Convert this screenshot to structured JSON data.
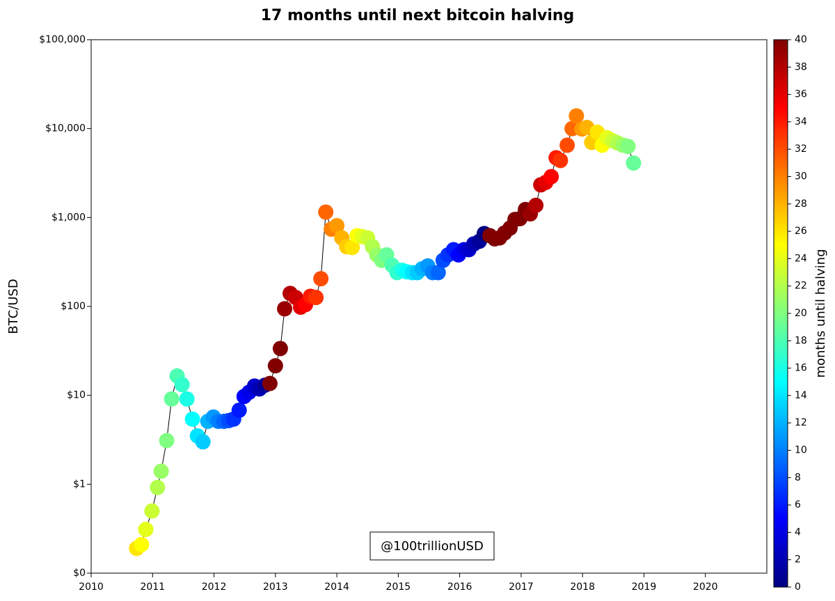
{
  "chart_data": {
    "type": "scatter",
    "title": "17 months until next bitcoin halving",
    "y_label": "BTC/USD",
    "annotation": "@100trillionUSD",
    "log_y": true,
    "xlim": [
      2010,
      2021
    ],
    "xticks": [
      2010,
      2011,
      2012,
      2013,
      2014,
      2015,
      2016,
      2017,
      2018,
      2019,
      2020
    ],
    "ylim": [
      0.1,
      100000
    ],
    "yticks": [
      {
        "value": 0.1,
        "label": "$0"
      },
      {
        "value": 1,
        "label": "$1"
      },
      {
        "value": 10,
        "label": "$10"
      },
      {
        "value": 100,
        "label": "$100"
      },
      {
        "value": 1000,
        "label": "$1,000"
      },
      {
        "value": 10000,
        "label": "$10,000"
      },
      {
        "value": 100000,
        "label": "$100,000"
      }
    ],
    "line_color": "#000000",
    "colorbar": {
      "label": "months until halving",
      "lim": [
        0,
        40
      ],
      "ticks": [
        0,
        2,
        4,
        6,
        8,
        10,
        12,
        14,
        16,
        18,
        20,
        22,
        24,
        26,
        28,
        30,
        32,
        34,
        36,
        38,
        40
      ]
    },
    "x": [
      2010.74,
      2010.82,
      2010.89,
      2010.99,
      2011.08,
      2011.14,
      2011.23,
      2011.31,
      2011.4,
      2011.48,
      2011.56,
      2011.65,
      2011.73,
      2011.82,
      2011.9,
      2011.99,
      2012.07,
      2012.16,
      2012.24,
      2012.32,
      2012.41,
      2012.49,
      2012.57,
      2012.66,
      2012.74,
      2012.83,
      2012.91,
      2013.0,
      2013.08,
      2013.15,
      2013.24,
      2013.33,
      2013.41,
      2013.49,
      2013.57,
      2013.66,
      2013.74,
      2013.82,
      2013.91,
      2014.0,
      2014.08,
      2014.16,
      2014.25,
      2014.33,
      2014.41,
      2014.5,
      2014.58,
      2014.65,
      2014.73,
      2014.81,
      2014.9,
      2014.98,
      2015.06,
      2015.14,
      2015.23,
      2015.31,
      2015.39,
      2015.48,
      2015.56,
      2015.65,
      2015.73,
      2015.81,
      2015.9,
      2015.98,
      2016.07,
      2016.15,
      2016.23,
      2016.32,
      2016.4,
      2016.49,
      2016.57,
      2016.65,
      2016.73,
      2016.82,
      2016.9,
      2016.98,
      2017.07,
      2017.15,
      2017.24,
      2017.32,
      2017.4,
      2017.49,
      2017.57,
      2017.64,
      2017.75,
      2017.83,
      2017.9,
      2017.99,
      2018.07,
      2018.15,
      2018.24,
      2018.32,
      2018.4,
      2018.49,
      2018.57,
      2018.66,
      2018.74,
      2018.83
    ],
    "y": [
      0.19,
      0.21,
      0.31,
      0.5,
      0.92,
      1.4,
      3.1,
      9.1,
      16.5,
      13.2,
      9.1,
      5.4,
      3.5,
      3.0,
      5.1,
      5.7,
      5.1,
      5.1,
      5.2,
      5.4,
      6.8,
      9.7,
      10.8,
      12.7,
      11.8,
      13.0,
      13.6,
      21.5,
      33.6,
      94,
      140,
      126,
      98,
      105,
      130,
      126,
      205,
      1150,
      740,
      810,
      590,
      470,
      460,
      625,
      610,
      590,
      470,
      380,
      330,
      380,
      290,
      240,
      255,
      245,
      240,
      240,
      265,
      285,
      240,
      240,
      330,
      380,
      435,
      380,
      435,
      435,
      505,
      540,
      660,
      625,
      575,
      590,
      670,
      760,
      950,
      970,
      1230,
      1100,
      1370,
      2330,
      2480,
      2880,
      4700,
      4380,
      6500,
      10000,
      13900,
      9900,
      10300,
      7000,
      9100,
      6500,
      7900,
      7300,
      6900,
      6500,
      6300,
      4100
    ],
    "color_values": [
      26,
      25,
      24,
      23,
      22,
      21,
      20,
      19,
      18,
      17,
      16,
      15,
      14,
      13,
      12,
      11,
      10,
      9,
      8,
      7,
      6,
      5,
      4,
      3,
      2,
      1,
      42,
      41,
      40,
      39,
      38,
      37,
      36,
      35,
      34,
      33,
      32,
      31,
      30,
      29,
      28,
      27,
      26,
      25,
      24,
      23,
      22,
      21,
      20,
      19,
      18,
      17,
      16,
      15,
      14,
      13,
      12,
      11,
      10,
      9,
      8,
      7,
      6,
      5,
      4,
      3,
      2,
      1,
      0,
      47,
      46,
      45,
      44,
      43,
      42,
      41,
      40,
      39,
      38,
      37,
      36,
      35,
      34,
      33,
      32,
      31,
      30,
      29,
      28,
      27,
      26,
      25,
      24,
      23,
      22,
      21,
      20,
      19
    ]
  }
}
